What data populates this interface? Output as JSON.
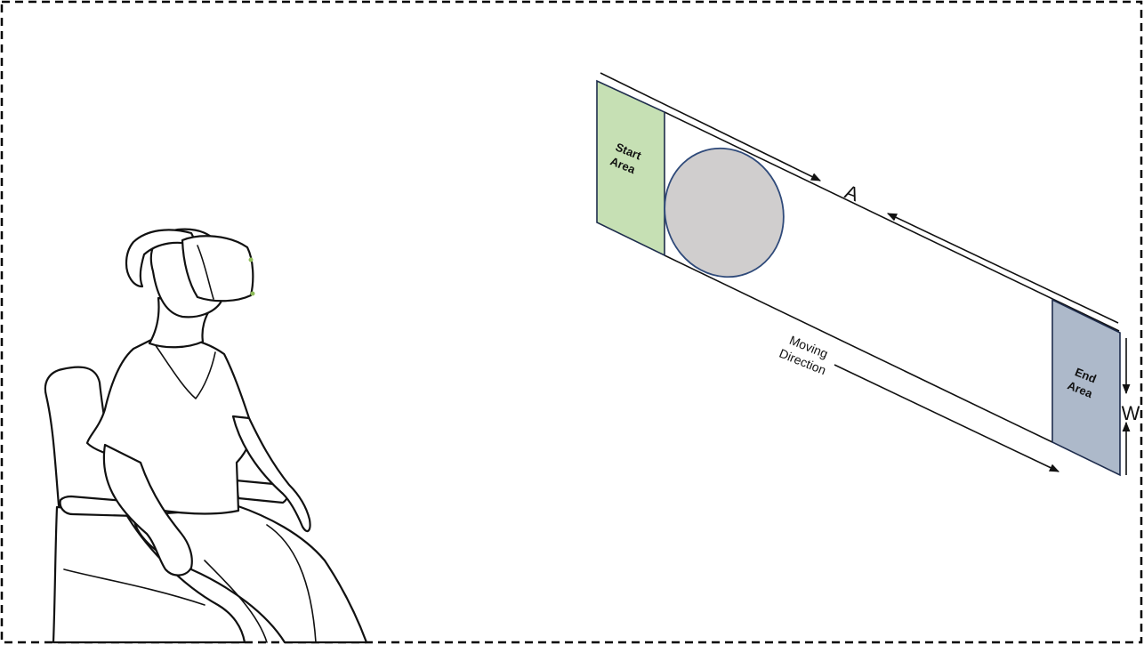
{
  "diagram": {
    "start_area": {
      "line1": "Start",
      "line2": "Area",
      "color": "#c6e0b4"
    },
    "end_area": {
      "line1": "End",
      "line2": "Area",
      "color": "#adb9ca"
    },
    "target": {
      "color": "#d0cece",
      "stroke": "#2f4a7a"
    },
    "amplitude_label": "A",
    "width_label": "W",
    "direction_label": {
      "line1": "Moving",
      "line2": "Direction"
    },
    "border": {
      "color": "#000000"
    }
  },
  "illustration": {
    "icon": "seated-person-with-vr-headset"
  }
}
